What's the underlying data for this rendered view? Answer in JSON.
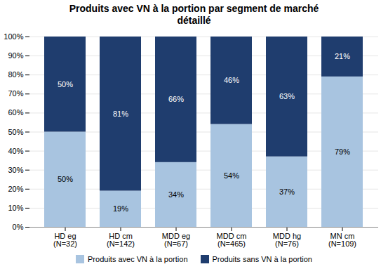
{
  "chart_data": {
    "type": "bar",
    "stacked": true,
    "title": "Produits avec VN à la portion par segment de marché\ndétaillé",
    "categories": [
      "HD eg\n(N=32)",
      "HD cm\n(N=142)",
      "MDD eg\n(N=67)",
      "MDD cm\n(N=465)",
      "MDD hg\n(N=76)",
      "MN cm\n(N=109)"
    ],
    "series": [
      {
        "name": "Produits avec VN à la portion",
        "color": "#a8c4e0",
        "values": [
          50,
          19,
          34,
          54,
          37,
          79
        ],
        "value_labels": [
          "50%",
          "19%",
          "34%",
          "54%",
          "37%",
          "79%"
        ]
      },
      {
        "name": "Produits sans VN à la portion",
        "color": "#1f3d6e",
        "values": [
          50,
          81,
          66,
          46,
          63,
          21
        ],
        "value_labels": [
          "50%",
          "81%",
          "66%",
          "46%",
          "63%",
          "21%"
        ]
      }
    ],
    "ylim": [
      0,
      100
    ],
    "yticks": [
      {
        "value": 0,
        "label": "0%"
      },
      {
        "value": 10,
        "label": "10%"
      },
      {
        "value": 20,
        "label": "20%"
      },
      {
        "value": 30,
        "label": "30%"
      },
      {
        "value": 40,
        "label": "40%"
      },
      {
        "value": 50,
        "label": "50%"
      },
      {
        "value": 60,
        "label": "60%"
      },
      {
        "value": 70,
        "label": "70%"
      },
      {
        "value": 80,
        "label": "80%"
      },
      {
        "value": 90,
        "label": "90%"
      },
      {
        "value": 100,
        "label": "100%"
      }
    ],
    "grid": true,
    "data_labels": true,
    "legend": "bottom"
  }
}
